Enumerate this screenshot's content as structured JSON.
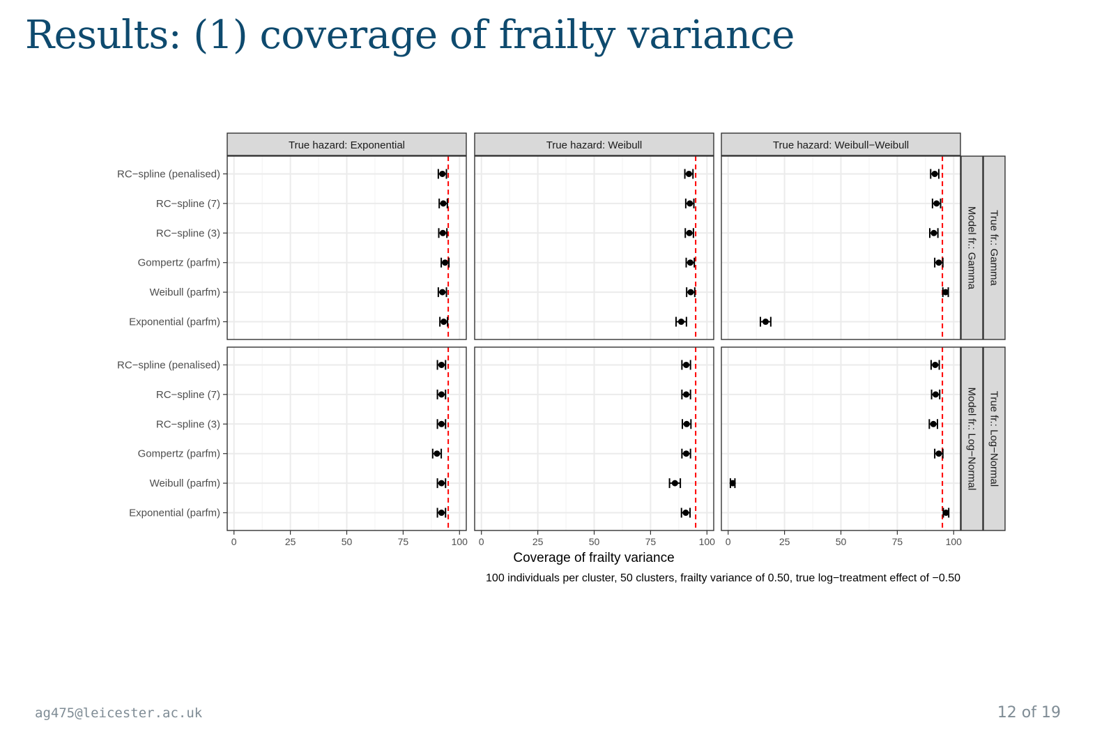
{
  "slide": {
    "title": "Results: (1) coverage of frailty variance",
    "footer_email": "ag475@leicester.ac.uk",
    "footer_page": "12 of 19"
  },
  "chart_data": {
    "type": "scatter",
    "subtype": "dot-and-whisker faceted grid",
    "xlabel": "Coverage of frailty variance",
    "caption": "100 individuals per cluster, 50 clusters, frailty variance of 0.50, true log−treatment effect of −0.50",
    "xlim": [
      -3,
      103
    ],
    "xticks": [
      0,
      25,
      50,
      75,
      100
    ],
    "reference_line": {
      "x": 95,
      "color": "#ff0000",
      "style": "dashed"
    },
    "colors": {
      "point": "#000000",
      "strip_bg": "#d9d9d9",
      "grid": "#ebebeb",
      "reference": "#ff0000"
    },
    "grid": true,
    "categories": [
      "RC−spline (penalised)",
      "RC−spline (7)",
      "RC−spline (3)",
      "Gompertz (parfm)",
      "Weibull (parfm)",
      "Exponential (parfm)"
    ],
    "col_facets": [
      "True hazard: Exponential",
      "True hazard: Weibull",
      "True hazard: Weibull−Weibull"
    ],
    "row_facets": [
      {
        "inner": "Model fr.: Gamma",
        "outer": "True fr.: Gamma"
      },
      {
        "inner": "Model fr.: Log−Normal",
        "outer": "True fr.: Log−Normal"
      }
    ],
    "panels": [
      [
        {
          "estimates": [
            92.4,
            92.8,
            92.6,
            93.6,
            92.4,
            93.0
          ],
          "lower": [
            90.6,
            91.0,
            90.8,
            91.9,
            90.6,
            91.3
          ],
          "upper": [
            94.2,
            94.6,
            94.4,
            95.3,
            94.2,
            94.7
          ]
        },
        {
          "estimates": [
            92.0,
            92.4,
            92.2,
            92.6,
            92.8,
            88.6
          ],
          "lower": [
            90.2,
            90.6,
            90.4,
            90.8,
            91.0,
            86.3
          ],
          "upper": [
            93.8,
            94.2,
            94.0,
            94.4,
            94.6,
            90.9
          ]
        },
        {
          "estimates": [
            91.6,
            92.4,
            91.2,
            93.4,
            96.4,
            16.6
          ],
          "lower": [
            89.8,
            90.6,
            89.4,
            91.6,
            95.2,
            14.3
          ],
          "upper": [
            93.4,
            94.2,
            93.0,
            95.2,
            97.6,
            18.9
          ]
        }
      ],
      [
        {
          "estimates": [
            92.0,
            92.0,
            92.0,
            90.0,
            92.0,
            92.0
          ],
          "lower": [
            90.2,
            90.2,
            90.2,
            88.1,
            90.2,
            90.2
          ],
          "upper": [
            93.8,
            93.8,
            93.8,
            91.9,
            93.8,
            93.8
          ]
        },
        {
          "estimates": [
            90.8,
            90.8,
            91.0,
            90.8,
            85.8,
            90.6
          ],
          "lower": [
            88.9,
            88.9,
            89.1,
            88.9,
            83.4,
            88.7
          ],
          "upper": [
            92.7,
            92.7,
            92.9,
            92.7,
            88.2,
            92.5
          ]
        },
        {
          "estimates": [
            91.8,
            92.0,
            91.0,
            93.4,
            2.0,
            96.6
          ],
          "lower": [
            90.0,
            90.2,
            89.2,
            91.6,
            1.0,
            95.4
          ],
          "upper": [
            93.6,
            93.8,
            92.8,
            95.2,
            3.0,
            97.8
          ]
        }
      ]
    ]
  }
}
